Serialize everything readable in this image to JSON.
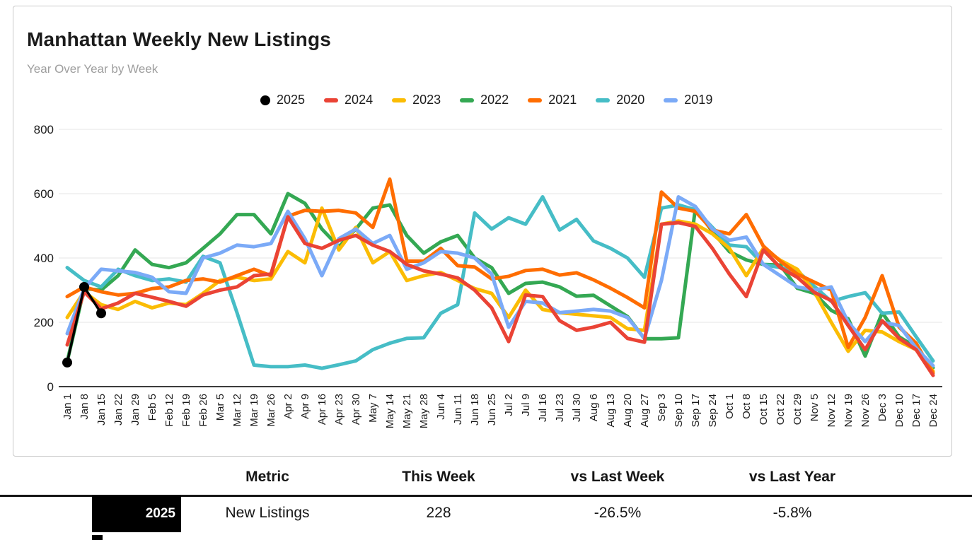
{
  "chart_data": {
    "type": "line",
    "title": "Manhattan Weekly New Listings",
    "subtitle": "Year Over Year by Week",
    "xlabel": "",
    "ylabel": "",
    "grid": true,
    "legend_position": "top",
    "y_axis": {
      "min": 0,
      "max": 800,
      "ticks": [
        0,
        200,
        400,
        600,
        800
      ]
    },
    "x_labels": [
      "Jan 1",
      "Jan 8",
      "Jan 15",
      "Jan 22",
      "Jan 29",
      "Feb 5",
      "Feb 12",
      "Feb 19",
      "Feb 26",
      "Mar 5",
      "Mar 12",
      "Mar 19",
      "Mar 26",
      "Apr 2",
      "Apr 9",
      "Apr 16",
      "Apr 23",
      "Apr 30",
      "May 7",
      "May 14",
      "May 21",
      "May 28",
      "Jun 4",
      "Jun 11",
      "Jun 18",
      "Jun 25",
      "Jul 2",
      "Jul 9",
      "Jul 16",
      "Jul 23",
      "Jul 30",
      "Aug 6",
      "Aug 13",
      "Aug 20",
      "Aug 27",
      "Sep 3",
      "Sep 10",
      "Sep 17",
      "Sep 24",
      "Oct 1",
      "Oct 8",
      "Oct 15",
      "Oct 22",
      "Oct 29",
      "Nov 5",
      "Nov 12",
      "Nov 19",
      "Nov 26",
      "Dec 3",
      "Dec 10",
      "Dec 17",
      "Dec 24"
    ],
    "legend": [
      {
        "label": "2025",
        "color": "#000000",
        "marker": "circle"
      },
      {
        "label": "2024",
        "color": "#EA4335",
        "marker": "dash"
      },
      {
        "label": "2023",
        "color": "#FBBC04",
        "marker": "dash"
      },
      {
        "label": "2022",
        "color": "#34A853",
        "marker": "dash"
      },
      {
        "label": "2021",
        "color": "#FF6D01",
        "marker": "dash"
      },
      {
        "label": "2020",
        "color": "#46BDC6",
        "marker": "dash"
      },
      {
        "label": "2019",
        "color": "#7BAAF7",
        "marker": "dash"
      }
    ],
    "series": [
      {
        "name": "2022",
        "color": "#34A853",
        "line_width": 5,
        "marker": "none",
        "values": [
          78,
          305,
          300,
          345,
          425,
          380,
          370,
          385,
          430,
          475,
          535,
          535,
          475,
          600,
          570,
          490,
          435,
          490,
          555,
          565,
          470,
          415,
          450,
          470,
          400,
          370,
          290,
          321,
          325,
          310,
          281,
          284,
          251,
          218,
          149,
          149,
          152,
          555,
          482,
          420,
          394,
          380,
          378,
          306,
          290,
          237,
          211,
          95,
          230,
          155,
          122,
          59
        ]
      },
      {
        "name": "2020",
        "color": "#46BDC6",
        "line_width": 5,
        "marker": "none",
        "values": [
          370,
          330,
          310,
          365,
          345,
          330,
          335,
          325,
          405,
          385,
          230,
          67,
          62,
          62,
          67,
          57,
          68,
          80,
          115,
          135,
          150,
          152,
          228,
          255,
          540,
          490,
          525,
          505,
          590,
          487,
          520,
          453,
          430,
          400,
          340,
          555,
          565,
          550,
          495,
          440,
          435,
          380,
          370,
          360,
          312,
          265,
          280,
          292,
          228,
          232,
          155,
          80
        ]
      },
      {
        "name": "2023",
        "color": "#FBBC04",
        "line_width": 5,
        "marker": "none",
        "values": [
          215,
          295,
          255,
          240,
          265,
          245,
          260,
          255,
          290,
          330,
          340,
          330,
          335,
          420,
          385,
          555,
          425,
          495,
          385,
          420,
          330,
          345,
          355,
          330,
          305,
          290,
          215,
          300,
          240,
          230,
          225,
          220,
          215,
          180,
          175,
          505,
          515,
          505,
          475,
          430,
          345,
          430,
          393,
          365,
          295,
          200,
          110,
          175,
          170,
          140,
          115,
          48
        ]
      },
      {
        "name": "2021",
        "color": "#FF6D01",
        "line_width": 5,
        "marker": "none",
        "values": [
          280,
          310,
          295,
          285,
          290,
          305,
          310,
          330,
          335,
          325,
          345,
          365,
          345,
          530,
          548,
          545,
          548,
          540,
          495,
          645,
          390,
          390,
          430,
          376,
          372,
          335,
          343,
          361,
          365,
          347,
          354,
          332,
          306,
          277,
          245,
          605,
          555,
          545,
          487,
          475,
          535,
          437,
          390,
          350,
          325,
          300,
          122,
          215,
          345,
          185,
          135,
          42
        ]
      },
      {
        "name": "2019",
        "color": "#7BAAF7",
        "line_width": 5,
        "marker": "none",
        "values": [
          165,
          305,
          365,
          360,
          355,
          340,
          295,
          290,
          400,
          415,
          440,
          435,
          445,
          545,
          460,
          345,
          460,
          490,
          445,
          470,
          365,
          385,
          420,
          415,
          400,
          350,
          185,
          265,
          260,
          230,
          235,
          240,
          235,
          215,
          150,
          330,
          590,
          560,
          490,
          455,
          465,
          380,
          345,
          310,
          300,
          310,
          200,
          140,
          200,
          190,
          120,
          65
        ]
      },
      {
        "name": "2024",
        "color": "#EA4335",
        "line_width": 5,
        "marker": "none",
        "values": [
          130,
          295,
          242,
          260,
          290,
          278,
          265,
          250,
          285,
          300,
          310,
          345,
          350,
          528,
          445,
          430,
          455,
          470,
          440,
          420,
          380,
          360,
          350,
          338,
          300,
          245,
          140,
          285,
          280,
          205,
          175,
          185,
          200,
          150,
          138,
          505,
          510,
          498,
          430,
          350,
          280,
          425,
          370,
          340,
          293,
          268,
          190,
          115,
          205,
          150,
          115,
          35
        ]
      },
      {
        "name": "2025",
        "color": "#000000",
        "line_width": 3.5,
        "marker": "circle",
        "values": [
          75,
          310,
          228,
          null,
          null,
          null,
          null,
          null,
          null,
          null,
          null,
          null,
          null,
          null,
          null,
          null,
          null,
          null,
          null,
          null,
          null,
          null,
          null,
          null,
          null,
          null,
          null,
          null,
          null,
          null,
          null,
          null,
          null,
          null,
          null,
          null,
          null,
          null,
          null,
          null,
          null,
          null,
          null,
          null,
          null,
          null,
          null,
          null,
          null,
          null,
          null,
          null
        ]
      }
    ]
  },
  "table": {
    "headers": [
      "Metric",
      "This Week",
      "vs Last Week",
      "vs Last Year"
    ],
    "rows": [
      {
        "year": "2025",
        "year_bg": "#000000",
        "metric": "New Listings",
        "this_week": "228",
        "vs_last_week": "-26.5%",
        "vs_last_year": "-5.8%"
      }
    ]
  }
}
